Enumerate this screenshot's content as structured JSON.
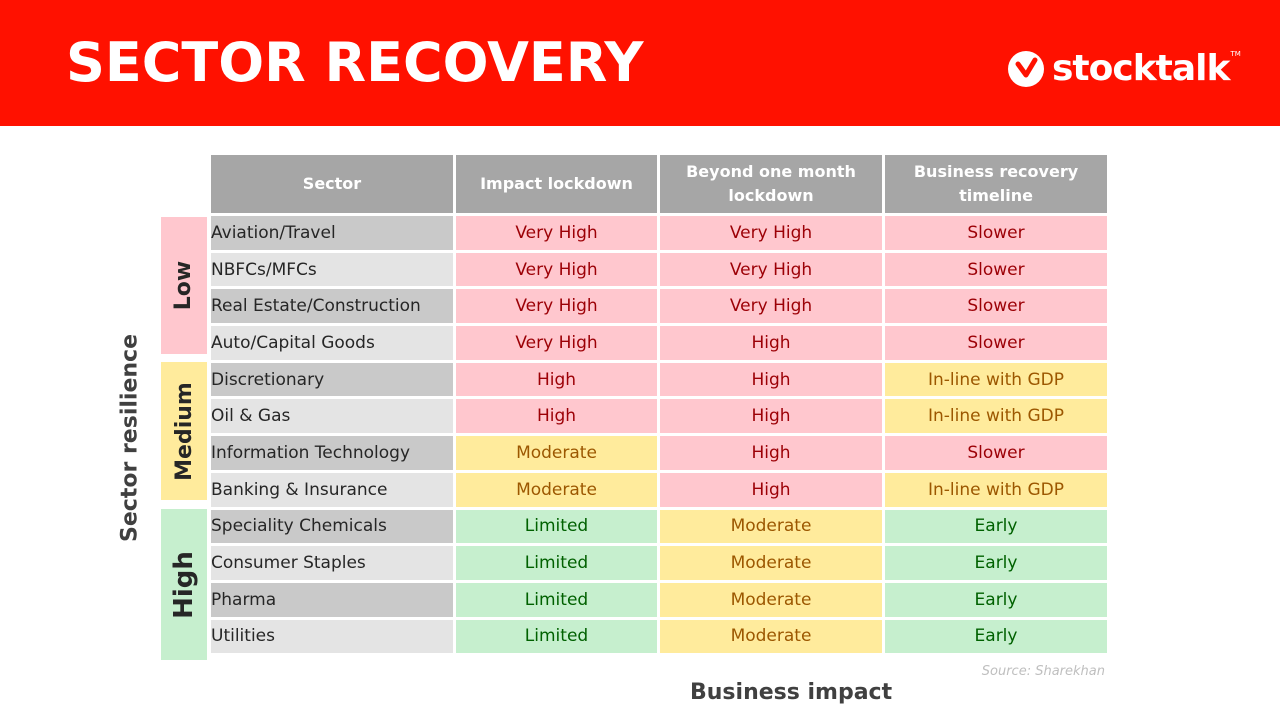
{
  "header": {
    "title": "SECTOR RECOVERY",
    "brand": "stocktalk",
    "brand_tm": "TM",
    "brand_icon": "stocktalk-logo-icon"
  },
  "colors": {
    "header_bg": "#ff1100",
    "red_fill": "#ffc7ce",
    "red_text": "#9c0006",
    "yellow_fill": "#ffeb9c",
    "yellow_text": "#9c5700",
    "green_fill": "#c6efce",
    "green_text": "#006100",
    "header_cell": "#a6a6a6"
  },
  "table": {
    "headers": [
      "Sector",
      "Impact lockdown",
      "Beyond one month lockdown",
      "Business recovery timeline"
    ],
    "rows": [
      {
        "sector": "Aviation/Travel",
        "impact": "Very High",
        "beyond": "Very High",
        "timeline": "Slower",
        "colors": [
          "red",
          "red",
          "red"
        ]
      },
      {
        "sector": "NBFCs/MFCs",
        "impact": "Very High",
        "beyond": "Very High",
        "timeline": "Slower",
        "colors": [
          "red",
          "red",
          "red"
        ]
      },
      {
        "sector": "Real Estate/Construction",
        "impact": "Very High",
        "beyond": "Very High",
        "timeline": "Slower",
        "colors": [
          "red",
          "red",
          "red"
        ]
      },
      {
        "sector": "Auto/Capital Goods",
        "impact": "Very High",
        "beyond": "High",
        "timeline": "Slower",
        "colors": [
          "red",
          "red",
          "red"
        ]
      },
      {
        "sector": "Discretionary",
        "impact": "High",
        "beyond": "High",
        "timeline": "In-line with GDP",
        "colors": [
          "red",
          "red",
          "yellow"
        ]
      },
      {
        "sector": "Oil & Gas",
        "impact": "High",
        "beyond": "High",
        "timeline": "In-line with GDP",
        "colors": [
          "red",
          "red",
          "yellow"
        ]
      },
      {
        "sector": "Information Technology",
        "impact": "Moderate",
        "beyond": "High",
        "timeline": "Slower",
        "colors": [
          "yellow",
          "red",
          "red"
        ]
      },
      {
        "sector": "Banking & Insurance",
        "impact": "Moderate",
        "beyond": "High",
        "timeline": "In-line with GDP",
        "colors": [
          "yellow",
          "red",
          "yellow"
        ]
      },
      {
        "sector": "Speciality Chemicals",
        "impact": "Limited",
        "beyond": "Moderate",
        "timeline": "Early",
        "colors": [
          "green",
          "yellow",
          "green"
        ]
      },
      {
        "sector": "Consumer Staples",
        "impact": "Limited",
        "beyond": "Moderate",
        "timeline": "Early",
        "colors": [
          "green",
          "yellow",
          "green"
        ]
      },
      {
        "sector": "Pharma",
        "impact": "Limited",
        "beyond": "Moderate",
        "timeline": "Early",
        "colors": [
          "green",
          "yellow",
          "green"
        ]
      },
      {
        "sector": "Utilities",
        "impact": "Limited",
        "beyond": "Moderate",
        "timeline": "Early",
        "colors": [
          "green",
          "yellow",
          "green"
        ]
      }
    ]
  },
  "resilience_bands": [
    "Low",
    "Medium",
    "High"
  ],
  "axes": {
    "y_label": "Sector resilience",
    "x_label": "Business impact"
  },
  "source": "Source: Sharekhan"
}
